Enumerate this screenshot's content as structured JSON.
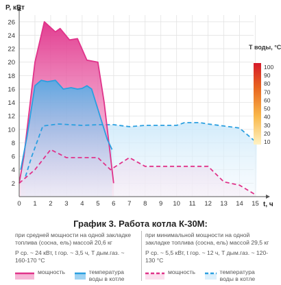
{
  "chart_data": {
    "type": "area",
    "title": "График 3. Работа котла К-30М:",
    "ylabel": "P, кВт",
    "xlabel": "t, ч",
    "xlim": [
      0,
      15.5
    ],
    "ylim": [
      0,
      27
    ],
    "x_ticks": [
      "0",
      "1",
      "2",
      "3",
      "4",
      "5",
      "6",
      "7",
      "8",
      "9",
      "10",
      "11",
      "12",
      "13",
      "14",
      "15"
    ],
    "y_ticks": [
      "2",
      "4",
      "6",
      "8",
      "10",
      "12",
      "14",
      "16",
      "18",
      "20",
      "22",
      "24",
      "26"
    ],
    "grid": true,
    "series": [
      {
        "name": "мощность",
        "group": "medium",
        "style": "solid-area",
        "color": "#e0338a",
        "points": [
          [
            0,
            2
          ],
          [
            0.3,
            6
          ],
          [
            1,
            20
          ],
          [
            1.6,
            26
          ],
          [
            2.3,
            24.5
          ],
          [
            2.6,
            25
          ],
          [
            3.2,
            23.3
          ],
          [
            3.7,
            23.5
          ],
          [
            4.3,
            20.3
          ],
          [
            5,
            20
          ],
          [
            5.4,
            14
          ],
          [
            6,
            2
          ]
        ]
      },
      {
        "name": "температура воды в котле",
        "group": "medium",
        "style": "solid-area",
        "color": "#2a9fe0",
        "points": [
          [
            0.1,
            4
          ],
          [
            0.5,
            9
          ],
          [
            1,
            16.5
          ],
          [
            1.4,
            17.3
          ],
          [
            1.8,
            17.1
          ],
          [
            2.3,
            17.3
          ],
          [
            2.8,
            16
          ],
          [
            3.3,
            16.2
          ],
          [
            3.7,
            16
          ],
          [
            4,
            16.1
          ],
          [
            4.3,
            16.5
          ],
          [
            4.6,
            16
          ],
          [
            5.2,
            11.5
          ],
          [
            5.6,
            8.5
          ],
          [
            5.9,
            7
          ]
        ]
      },
      {
        "name": "мощность",
        "group": "minimum",
        "style": "dashed-area",
        "color": "#e0338a",
        "points": [
          [
            0,
            2
          ],
          [
            1,
            4
          ],
          [
            2,
            7
          ],
          [
            3,
            5.8
          ],
          [
            4,
            5.8
          ],
          [
            5,
            5.8
          ],
          [
            5.8,
            4
          ],
          [
            7,
            5.8
          ],
          [
            8,
            4.5
          ],
          [
            9,
            4.5
          ],
          [
            10,
            4.5
          ],
          [
            11,
            4.5
          ],
          [
            12,
            4.5
          ],
          [
            13,
            2.2
          ],
          [
            14,
            1.7
          ],
          [
            15,
            0.3
          ]
        ]
      },
      {
        "name": "температура воды в котле",
        "group": "minimum",
        "style": "dashed-area",
        "color": "#2a9fe0",
        "points": [
          [
            0.4,
            3
          ],
          [
            0.8,
            6
          ],
          [
            1.5,
            10.5
          ],
          [
            2.5,
            10.8
          ],
          [
            4,
            10.6
          ],
          [
            5,
            10.7
          ],
          [
            6,
            10.7
          ],
          [
            7,
            10.4
          ],
          [
            8,
            10.6
          ],
          [
            9,
            10.6
          ],
          [
            10,
            10.6
          ],
          [
            10.5,
            11
          ],
          [
            11.5,
            11
          ],
          [
            12,
            10.8
          ],
          [
            13,
            10.5
          ],
          [
            14,
            10.2
          ],
          [
            14.6,
            9
          ],
          [
            15.1,
            8
          ]
        ]
      }
    ],
    "colorbar": {
      "title": "T воды, °C",
      "ticks": [
        "10",
        "20",
        "30",
        "40",
        "50",
        "60",
        "70",
        "80",
        "90",
        "100"
      ],
      "range": [
        10,
        100
      ],
      "colors": [
        "#fff2c4",
        "#f9b84a",
        "#e8651f",
        "#d61a2b"
      ]
    },
    "legend": {
      "left_desc": "при средней мощности на одной закладке топлива (сосна, ель) массой 20,6 кг",
      "left_params": "P ср. ~ 24 кВт, t гор. ~ 3,5 ч, T дым.газ. ~ 160-170 °C",
      "right_desc": "при минимальной мощности на одной закладке топлива (сосна, ель) массой 29,5 кг",
      "right_params": "P ср. ~ 5,5 кВт, t гор. ~ 12 ч, T дым.газ. ~ 120-130 °C",
      "power_label": "мощность",
      "temp_label": "температура воды в котле"
    }
  }
}
